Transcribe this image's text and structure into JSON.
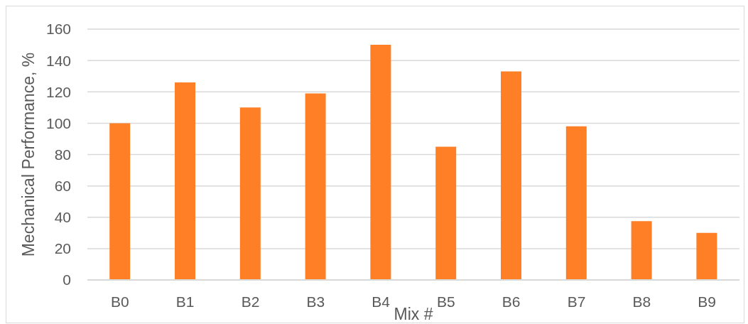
{
  "chart_data": {
    "type": "bar",
    "xlabel": "Mix #",
    "ylabel": "Mechanical Performance, %",
    "categories": [
      "B0",
      "B1",
      "B2",
      "B3",
      "B4",
      "B5",
      "B6",
      "B7",
      "B8",
      "B9"
    ],
    "values": [
      100,
      126,
      110,
      119,
      150,
      85,
      133,
      98,
      37.5,
      30
    ],
    "color": "#fe7f26",
    "ylim": [
      0,
      160
    ],
    "yticks": [
      0,
      20,
      40,
      60,
      80,
      100,
      120,
      140,
      160
    ],
    "grid": "y"
  }
}
